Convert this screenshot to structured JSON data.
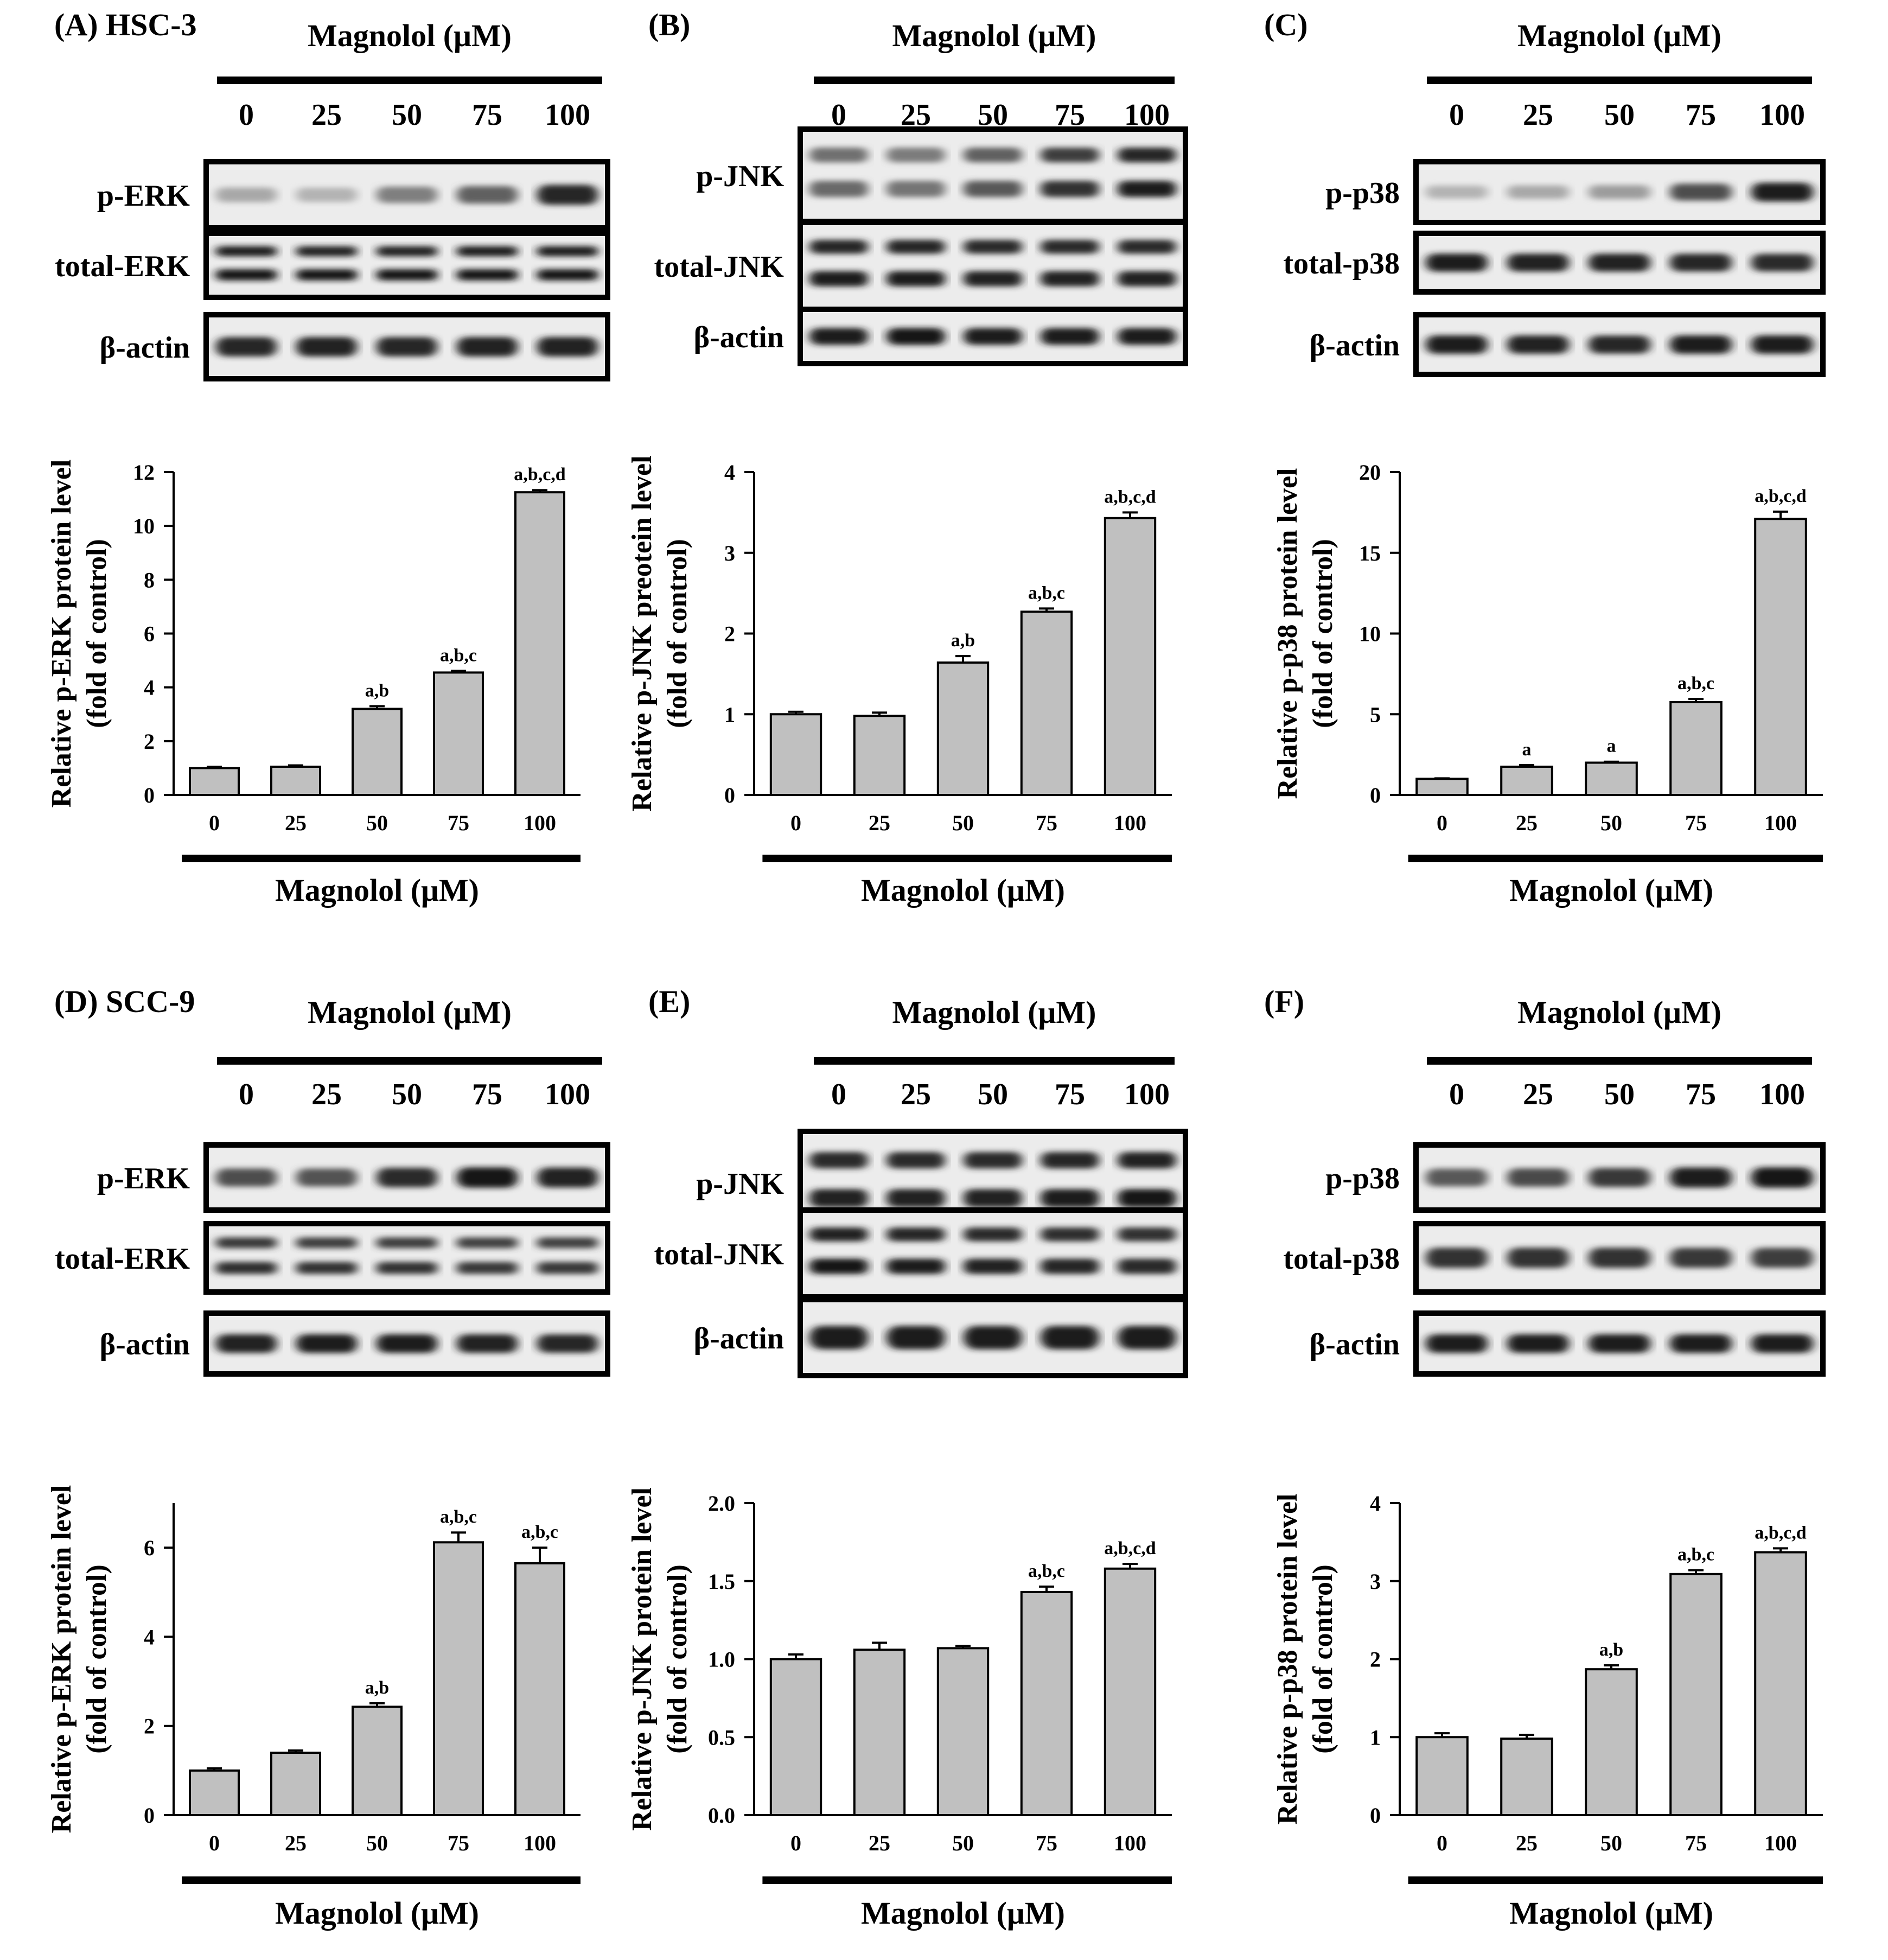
{
  "figure": {
    "magnolol_label": "Magnolol (μM)",
    "concentrations": [
      "0",
      "25",
      "50",
      "75",
      "100"
    ]
  },
  "panels": [
    {
      "id": "A",
      "panel_label": "(A) HSC-3",
      "blots": [
        {
          "label": "p-ERK",
          "kind": "single",
          "intensity": [
            0.3,
            0.25,
            0.48,
            0.62,
            0.88
          ]
        },
        {
          "label": "total-ERK",
          "kind": "double",
          "intensity": [
            0.92,
            0.9,
            0.9,
            0.92,
            0.92
          ]
        },
        {
          "label": "β-actin",
          "kind": "single",
          "intensity": [
            0.88,
            0.9,
            0.88,
            0.9,
            0.9
          ]
        }
      ]
    },
    {
      "id": "B",
      "panel_label": "(B)",
      "blots": [
        {
          "label": "p-JNK",
          "kind": "double",
          "intensity": [
            0.55,
            0.5,
            0.62,
            0.78,
            0.88
          ]
        },
        {
          "label": "total-JNK",
          "kind": "double",
          "intensity": [
            0.88,
            0.88,
            0.86,
            0.86,
            0.86
          ]
        },
        {
          "label": "β-actin",
          "kind": "single",
          "intensity": [
            0.92,
            0.94,
            0.92,
            0.92,
            0.92
          ]
        }
      ]
    },
    {
      "id": "C",
      "panel_label": "(C)",
      "blots": [
        {
          "label": "p-p38",
          "kind": "single",
          "intensity": [
            0.25,
            0.3,
            0.35,
            0.7,
            0.92
          ]
        },
        {
          "label": "total-p38",
          "kind": "single",
          "intensity": [
            0.92,
            0.9,
            0.9,
            0.88,
            0.86
          ]
        },
        {
          "label": "β-actin",
          "kind": "single",
          "intensity": [
            0.92,
            0.9,
            0.88,
            0.92,
            0.92
          ]
        }
      ]
    },
    {
      "id": "D",
      "panel_label": "(D) SCC-9",
      "blots": [
        {
          "label": "p-ERK",
          "kind": "single",
          "intensity": [
            0.7,
            0.68,
            0.85,
            0.95,
            0.9
          ]
        },
        {
          "label": "total-ERK",
          "kind": "double",
          "intensity": [
            0.8,
            0.78,
            0.78,
            0.76,
            0.76
          ]
        },
        {
          "label": "β-actin",
          "kind": "single",
          "intensity": [
            0.9,
            0.92,
            0.92,
            0.9,
            0.88
          ]
        }
      ]
    },
    {
      "id": "E",
      "panel_label": "(E)",
      "blots": [
        {
          "label": "p-JNK",
          "kind": "double",
          "intensity": [
            0.85,
            0.86,
            0.86,
            0.88,
            0.9
          ]
        },
        {
          "label": "total-JNK",
          "kind": "double",
          "intensity": [
            0.9,
            0.88,
            0.86,
            0.84,
            0.82
          ]
        },
        {
          "label": "β-actin",
          "kind": "single",
          "intensity": [
            0.92,
            0.92,
            0.92,
            0.92,
            0.92
          ]
        }
      ]
    },
    {
      "id": "F",
      "panel_label": "(F)",
      "blots": [
        {
          "label": "p-p38",
          "kind": "single",
          "intensity": [
            0.65,
            0.72,
            0.8,
            0.92,
            0.95
          ]
        },
        {
          "label": "total-p38",
          "kind": "single",
          "intensity": [
            0.82,
            0.82,
            0.82,
            0.8,
            0.78
          ]
        },
        {
          "label": "β-actin",
          "kind": "single",
          "intensity": [
            0.92,
            0.92,
            0.92,
            0.92,
            0.92
          ]
        }
      ]
    }
  ],
  "chart_data": [
    {
      "panel": "A",
      "type": "bar",
      "categories": [
        "0",
        "25",
        "50",
        "75",
        "100"
      ],
      "values": [
        1.0,
        1.05,
        3.2,
        4.55,
        11.25
      ],
      "errors": [
        0.05,
        0.05,
        0.1,
        0.06,
        0.08
      ],
      "annotations": [
        "",
        "",
        "a,b",
        "a,b,c",
        "a,b,c,d"
      ],
      "ylabel_line1": "Relative p-ERK protein level",
      "ylabel_line2": "(fold of control)",
      "xlabel": "Magnolol (μM)",
      "ylim": [
        0,
        12
      ],
      "yticks": [
        "0",
        "2",
        "4",
        "6",
        "8",
        "10",
        "12"
      ]
    },
    {
      "panel": "B",
      "type": "bar",
      "categories": [
        "0",
        "25",
        "50",
        "75",
        "100"
      ],
      "values": [
        1.0,
        0.98,
        1.64,
        2.27,
        3.43
      ],
      "errors": [
        0.03,
        0.04,
        0.08,
        0.04,
        0.07
      ],
      "annotations": [
        "",
        "",
        "a,b",
        "a,b,c",
        "a,b,c,d"
      ],
      "ylabel_line1": "Relative p-JNK preotein level",
      "ylabel_line2": "(fold of control)",
      "xlabel": "Magnolol (μM)",
      "ylim": [
        0,
        4
      ],
      "yticks": [
        "0",
        "1",
        "2",
        "3",
        "4"
      ]
    },
    {
      "panel": "C",
      "type": "bar",
      "categories": [
        "0",
        "25",
        "50",
        "75",
        "100"
      ],
      "values": [
        1.0,
        1.75,
        2.0,
        5.75,
        17.1
      ],
      "errors": [
        0.03,
        0.1,
        0.06,
        0.2,
        0.45
      ],
      "annotations": [
        "",
        "a",
        "a",
        "a,b,c",
        "a,b,c,d"
      ],
      "ylabel_line1": "Relative p-p38 protein level",
      "ylabel_line2": "(fold of control)",
      "xlabel": "Magnolol (μM)",
      "ylim": [
        0,
        20
      ],
      "yticks": [
        "0",
        "5",
        "10",
        "15",
        "20"
      ]
    },
    {
      "panel": "D",
      "type": "bar",
      "categories": [
        "0",
        "25",
        "50",
        "75",
        "100"
      ],
      "values": [
        1.0,
        1.4,
        2.43,
        6.12,
        5.65
      ],
      "errors": [
        0.05,
        0.05,
        0.08,
        0.22,
        0.35
      ],
      "annotations": [
        "",
        "",
        "a,b",
        "a,b,c",
        "a,b,c"
      ],
      "ylabel_line1": "Relative p-ERK protein level",
      "ylabel_line2": "(fold of control)",
      "xlabel": "Magnolol (μM)",
      "ylim": [
        0,
        7
      ],
      "yticks": [
        "0",
        "2",
        "4",
        "6"
      ]
    },
    {
      "panel": "E",
      "type": "bar",
      "categories": [
        "0",
        "25",
        "50",
        "75",
        "100"
      ],
      "values": [
        1.0,
        1.06,
        1.07,
        1.43,
        1.58
      ],
      "errors": [
        0.03,
        0.045,
        0.015,
        0.035,
        0.03
      ],
      "annotations": [
        "",
        "",
        "",
        "a,b,c",
        "a,b,c,d"
      ],
      "ylabel_line1": "Relative p-JNK protein level",
      "ylabel_line2": "(fold of control)",
      "xlabel": "Magnolol (μM)",
      "ylim": [
        0,
        2.0
      ],
      "yticks": [
        "0.0",
        "0.5",
        "1.0",
        "1.5",
        "2.0"
      ]
    },
    {
      "panel": "F",
      "type": "bar",
      "categories": [
        "0",
        "25",
        "50",
        "75",
        "100"
      ],
      "values": [
        1.0,
        0.98,
        1.87,
        3.09,
        3.37
      ],
      "errors": [
        0.05,
        0.05,
        0.05,
        0.05,
        0.05
      ],
      "annotations": [
        "",
        "",
        "a,b",
        "a,b,c",
        "a,b,c,d"
      ],
      "ylabel_line1": "Relative p-p38 protein level",
      "ylabel_line2": "(fold of control)",
      "xlabel": "Magnolol (μM)",
      "ylim": [
        0,
        4
      ],
      "yticks": [
        "0",
        "1",
        "2",
        "3",
        "4"
      ]
    }
  ]
}
